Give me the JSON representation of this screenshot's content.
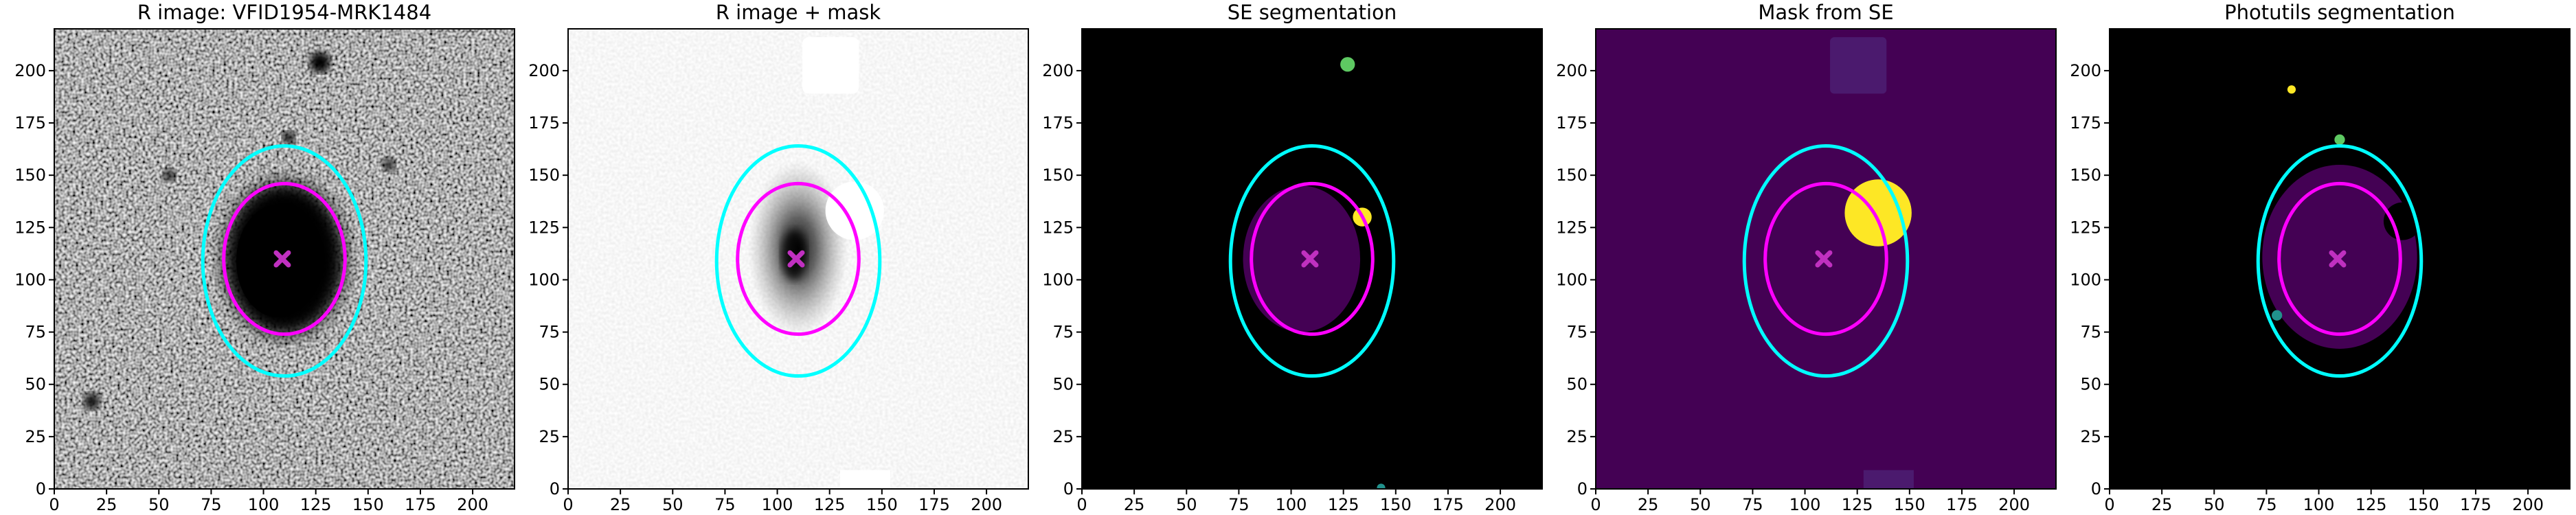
{
  "chart_data": [
    {
      "type": "image",
      "title": "R image: VFID1954-MRK1484",
      "xlim": [
        0,
        220
      ],
      "ylim": [
        0,
        220
      ],
      "xticks": [
        0,
        25,
        50,
        75,
        100,
        125,
        150,
        175,
        200
      ],
      "yticks": [
        0,
        25,
        50,
        75,
        100,
        125,
        150,
        175,
        200
      ],
      "ellipses": [
        {
          "color": "#00ffff",
          "cx": 110,
          "cy": 109,
          "rx": 39,
          "ry": 55
        },
        {
          "color": "#ff00ff",
          "cx": 110,
          "cy": 110,
          "rx": 29,
          "ry": 36
        }
      ],
      "marker": {
        "color": "#c030c0",
        "x": 109,
        "y": 110
      }
    },
    {
      "type": "image",
      "title": "R image + mask",
      "xlim": [
        0,
        220
      ],
      "ylim": [
        0,
        220
      ],
      "xticks": [
        0,
        25,
        50,
        75,
        100,
        125,
        150,
        175,
        200
      ],
      "yticks": [
        0,
        25,
        50,
        75,
        100,
        125,
        150,
        175,
        200
      ],
      "ellipses": [
        {
          "color": "#00ffff",
          "cx": 110,
          "cy": 109,
          "rx": 39,
          "ry": 55
        },
        {
          "color": "#ff00ff",
          "cx": 110,
          "cy": 110,
          "rx": 29,
          "ry": 36
        }
      ],
      "marker": {
        "color": "#c030c0",
        "x": 109,
        "y": 110
      }
    },
    {
      "type": "image",
      "title": "SE segmentation",
      "xlim": [
        0,
        220
      ],
      "ylim": [
        0,
        220
      ],
      "xticks": [
        0,
        25,
        50,
        75,
        100,
        125,
        150,
        175,
        200
      ],
      "yticks": [
        0,
        25,
        50,
        75,
        100,
        125,
        150,
        175,
        200
      ],
      "ellipses": [
        {
          "color": "#00ffff",
          "cx": 110,
          "cy": 109,
          "rx": 39,
          "ry": 55
        },
        {
          "color": "#ff00ff",
          "cx": 110,
          "cy": 110,
          "rx": 29,
          "ry": 36
        }
      ],
      "marker": {
        "color": "#c030c0",
        "x": 109,
        "y": 110
      }
    },
    {
      "type": "image",
      "title": "Mask from SE",
      "xlim": [
        0,
        220
      ],
      "ylim": [
        0,
        220
      ],
      "xticks": [
        0,
        25,
        50,
        75,
        100,
        125,
        150,
        175,
        200
      ],
      "yticks": [
        0,
        25,
        50,
        75,
        100,
        125,
        150,
        175,
        200
      ],
      "ellipses": [
        {
          "color": "#00ffff",
          "cx": 110,
          "cy": 109,
          "rx": 39,
          "ry": 55
        },
        {
          "color": "#ff00ff",
          "cx": 110,
          "cy": 110,
          "rx": 29,
          "ry": 36
        }
      ],
      "marker": {
        "color": "#c030c0",
        "x": 109,
        "y": 110
      }
    },
    {
      "type": "image",
      "title": "Photutils segmentation",
      "xlim": [
        0,
        220
      ],
      "ylim": [
        0,
        220
      ],
      "xticks": [
        0,
        25,
        50,
        75,
        100,
        125,
        150,
        175,
        200
      ],
      "yticks": [
        0,
        25,
        50,
        75,
        100,
        125,
        150,
        175,
        200
      ],
      "ellipses": [
        {
          "color": "#00ffff",
          "cx": 110,
          "cy": 109,
          "rx": 39,
          "ry": 55
        },
        {
          "color": "#ff00ff",
          "cx": 110,
          "cy": 110,
          "rx": 29,
          "ry": 36
        }
      ],
      "marker": {
        "color": "#c030c0",
        "x": 109,
        "y": 110
      }
    }
  ]
}
